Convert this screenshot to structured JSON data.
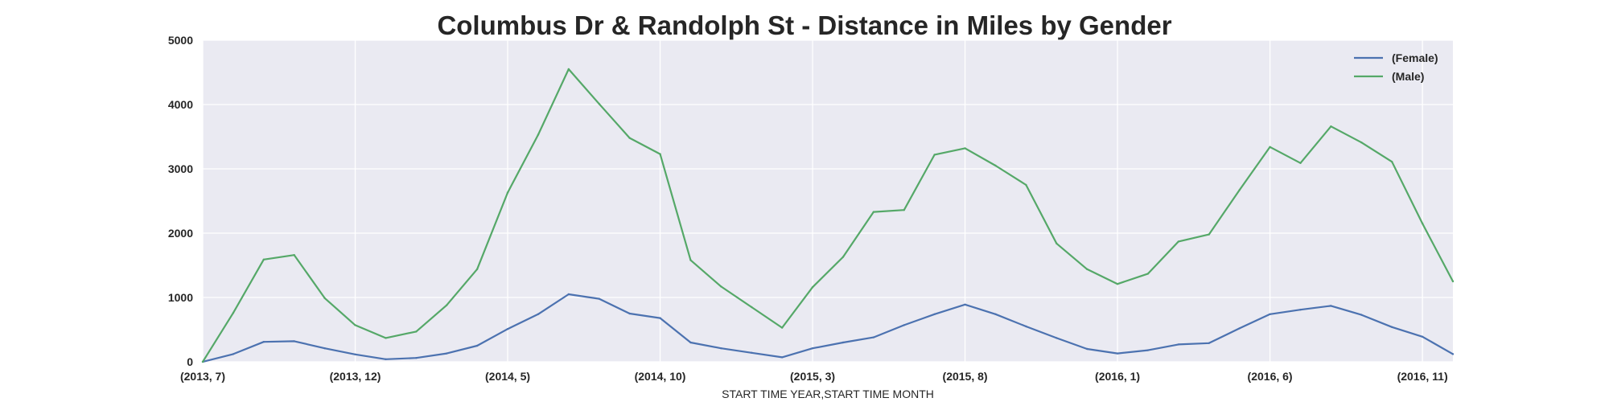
{
  "chart_data": {
    "type": "line",
    "title": "Columbus Dr & Randolph St - Distance in Miles by Gender",
    "xlabel": "START TIME YEAR,START TIME MONTH",
    "ylabel": "",
    "ylim": [
      0,
      5000
    ],
    "yticks": [
      0,
      1000,
      2000,
      3000,
      4000,
      5000
    ],
    "x": [
      "(2013, 7)",
      "(2013, 8)",
      "(2013, 9)",
      "(2013, 10)",
      "(2013, 11)",
      "(2013, 12)",
      "(2014, 1)",
      "(2014, 2)",
      "(2014, 3)",
      "(2014, 4)",
      "(2014, 5)",
      "(2014, 6)",
      "(2014, 7)",
      "(2014, 8)",
      "(2014, 9)",
      "(2014, 10)",
      "(2014, 11)",
      "(2014, 12)",
      "(2015, 1)",
      "(2015, 2)",
      "(2015, 3)",
      "(2015, 4)",
      "(2015, 5)",
      "(2015, 6)",
      "(2015, 7)",
      "(2015, 8)",
      "(2015, 9)",
      "(2015, 10)",
      "(2015, 11)",
      "(2015, 12)",
      "(2016, 1)",
      "(2016, 2)",
      "(2016, 3)",
      "(2016, 4)",
      "(2016, 5)",
      "(2016, 6)",
      "(2016, 7)",
      "(2016, 8)",
      "(2016, 9)",
      "(2016, 10)",
      "(2016, 11)",
      "(2016, 12)"
    ],
    "xtick_labels": [
      "(2013, 7)",
      "(2013, 12)",
      "(2014, 5)",
      "(2014, 10)",
      "(2015, 3)",
      "(2015, 8)",
      "(2016, 1)",
      "(2016, 6)",
      "(2016, 11)"
    ],
    "grid": true,
    "legend_position": "top-right",
    "series": [
      {
        "name": "(Female)",
        "color": "#4c72b0",
        "values": [
          0,
          120,
          310,
          320,
          210,
          115,
          40,
          60,
          130,
          250,
          510,
          740,
          1050,
          980,
          750,
          680,
          300,
          210,
          140,
          70,
          210,
          300,
          380,
          570,
          740,
          890,
          740,
          550,
          370,
          200,
          130,
          180,
          270,
          290,
          520,
          740,
          810,
          870,
          730,
          540,
          390,
          120
        ]
      },
      {
        "name": "(Male)",
        "color": "#55a868",
        "values": [
          0,
          760,
          1590,
          1660,
          990,
          570,
          370,
          470,
          880,
          1440,
          2630,
          3530,
          4550,
          4010,
          3480,
          3230,
          1580,
          1170,
          850,
          530,
          1160,
          1630,
          2330,
          2360,
          3220,
          3320,
          3050,
          2750,
          1840,
          1440,
          1210,
          1370,
          1870,
          1980,
          2670,
          3340,
          3090,
          3660,
          3410,
          3110,
          2150,
          1250
        ]
      }
    ],
    "colors": {
      "background": "#eaeaf2",
      "grid": "#ffffff",
      "text": "#262626"
    }
  }
}
